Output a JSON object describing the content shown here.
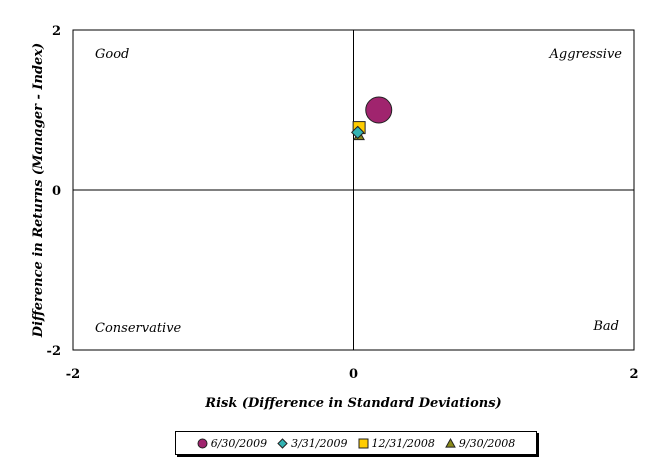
{
  "chart_data": {
    "type": "scatter",
    "xlabel": "Risk (Difference in Standard Deviations)",
    "ylabel": "Difference in Returns (Manager - Index)",
    "xlim": [
      -2,
      2
    ],
    "ylim": [
      -2,
      2
    ],
    "x_ticks": [
      "-2",
      "0",
      "2"
    ],
    "y_ticks": [
      "2",
      "0",
      "-2"
    ],
    "quadrant_labels": {
      "top_left": "Good",
      "top_right": "Aggressive",
      "bottom_left": "Conservative",
      "bottom_right": "Bad"
    },
    "legend_position": "bottom",
    "series": [
      {
        "name": "6/30/2009",
        "marker": "circle-large",
        "color": "#a0246e",
        "x": 0.18,
        "y": 1.0
      },
      {
        "name": "3/31/2009",
        "marker": "diamond",
        "color": "#33b3b3",
        "x": 0.03,
        "y": 0.72
      },
      {
        "name": "12/31/2008",
        "marker": "square",
        "color": "#ffcc00",
        "x": 0.04,
        "y": 0.78
      },
      {
        "name": "9/30/2008",
        "marker": "triangle",
        "color": "#8a8a1a",
        "x": 0.04,
        "y": 0.68
      }
    ]
  }
}
